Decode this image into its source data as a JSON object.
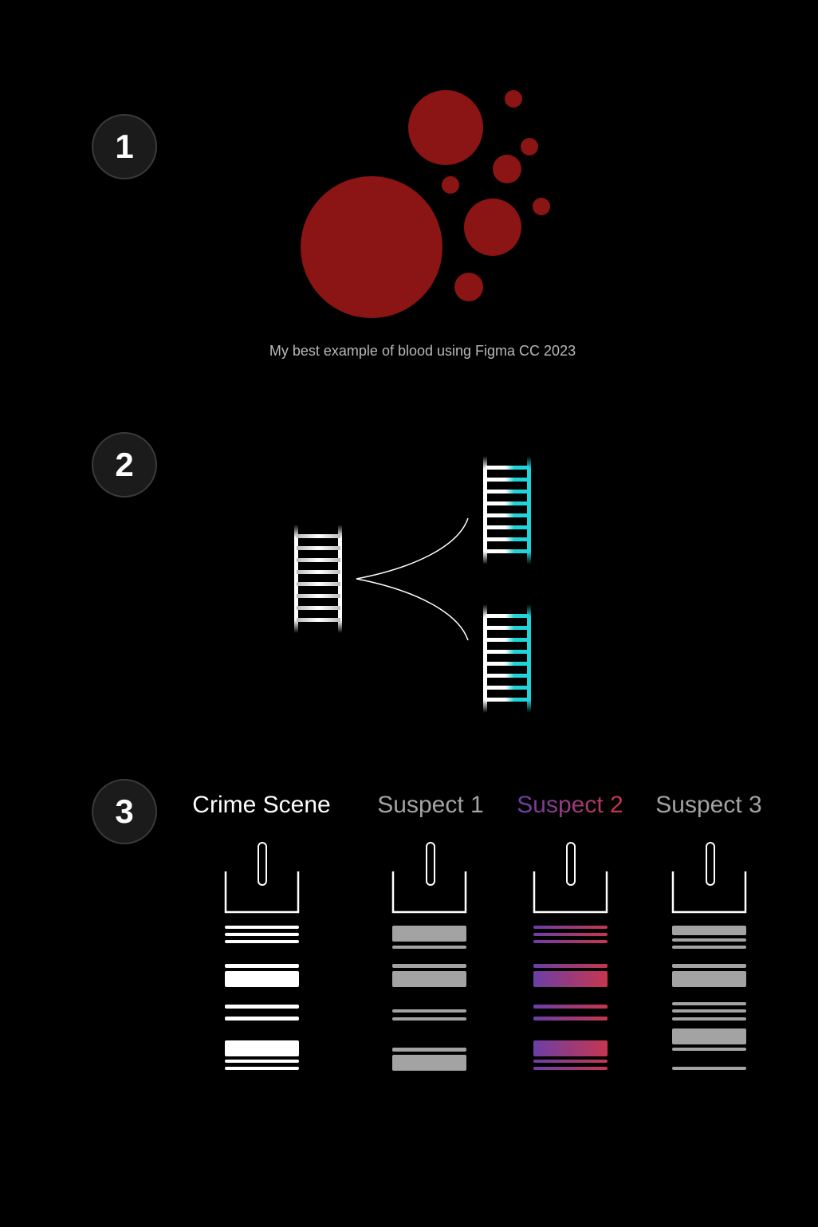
{
  "steps": {
    "one": "1",
    "two": "2",
    "three": "3"
  },
  "blood": {
    "caption": "My best example of blood using Figma CC 2023",
    "color": "#8b1414"
  },
  "dna": {
    "strand_color": "#ffffff",
    "highlight_color": "#22d3d8"
  },
  "gel": {
    "lanes": [
      {
        "label": "Crime Scene",
        "style": "white"
      },
      {
        "label": "Suspect 1",
        "style": "gray"
      },
      {
        "label": "Suspect 2",
        "style": "gradient"
      },
      {
        "label": "Suspect 3",
        "style": "gray"
      }
    ],
    "colors": {
      "white": "#ffffff",
      "gray": "#a3a3a3",
      "gradient_start": "#6b3fa8",
      "gradient_end": "#c7364f"
    }
  }
}
